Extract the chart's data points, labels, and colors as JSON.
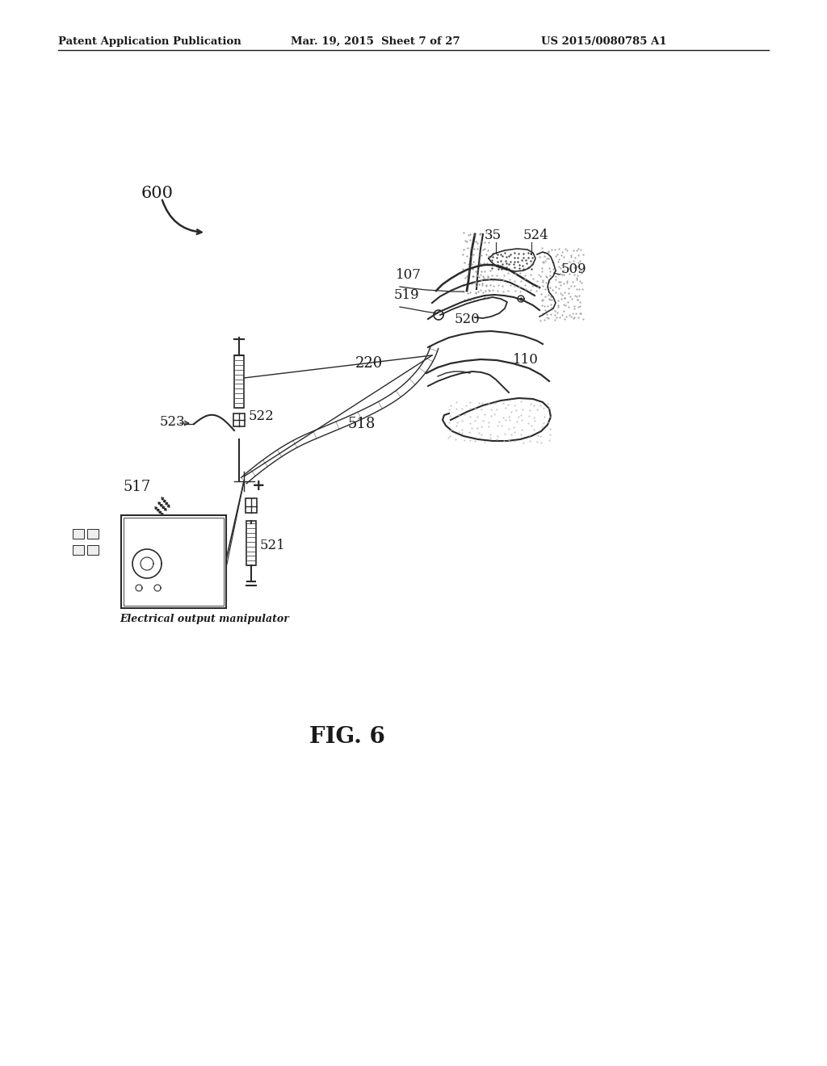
{
  "bg_color": "#ffffff",
  "header_left": "Patent Application Publication",
  "header_mid": "Mar. 19, 2015  Sheet 7 of 27",
  "header_right": "US 2015/0080785 A1",
  "fig_label": "FIG. 6",
  "ref_600": "600",
  "ref_35": "35",
  "ref_107": "107",
  "ref_110": "110",
  "ref_220": "220",
  "ref_509": "509",
  "ref_517": "517",
  "ref_518": "518",
  "ref_519": "519",
  "ref_520": "520",
  "ref_521": "521",
  "ref_522": "522",
  "ref_523": "523",
  "ref_524": "524",
  "device_label": "Electrical output manipulator",
  "line_color": "#2a2a2a",
  "text_color": "#1a1a1a",
  "gray_color": "#888888",
  "light_gray": "#cccccc"
}
